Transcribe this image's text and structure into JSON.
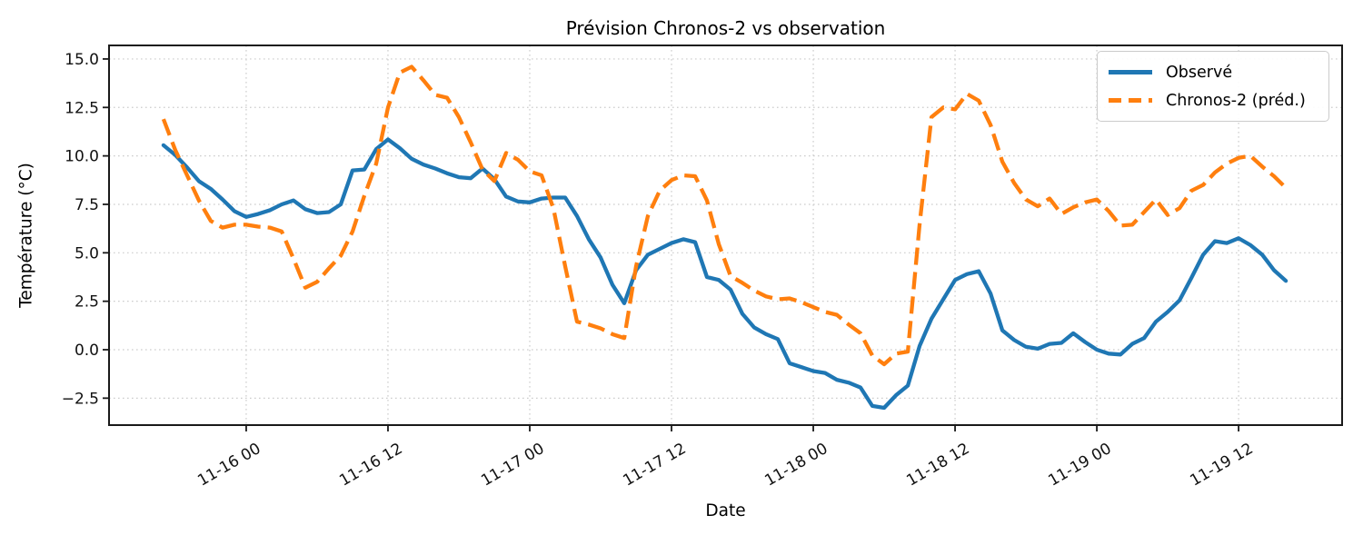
{
  "figure": {
    "title": "Prévision Chronos-2 vs observation",
    "xlabel": "Date",
    "ylabel": "Température (°C)"
  },
  "colors": {
    "background": "#ffffff",
    "grid": "#cccccc",
    "spine": "#1a1a1a",
    "text": "#000000",
    "observed": "#1f77b4",
    "forecast": "#ff7f0e"
  },
  "chart_data": {
    "type": "line",
    "title": "Prévision Chronos-2 vs observation",
    "xlabel": "Date",
    "ylabel": "Température (°C)",
    "grid": true,
    "legend_position": "upper right",
    "x_first_timestamp": "11-15 17:00",
    "x_last_timestamp": "11-19 16:00",
    "x_step_hours": 1,
    "x_start_hour": -7,
    "xlim_hours": [
      -11.61,
      92.76
    ],
    "ylim": [
      -3.89,
      15.7
    ],
    "x_ticks_hours": [
      0,
      12,
      24,
      36,
      48,
      60,
      72,
      84
    ],
    "x_tick_labels": [
      "11-16 00",
      "11-16 12",
      "11-17 00",
      "11-17 12",
      "11-18 00",
      "11-18 12",
      "11-19 00",
      "11-19 12"
    ],
    "y_ticks": [
      15.0,
      12.5,
      10.0,
      7.5,
      5.0,
      2.5,
      0.0,
      -2.5
    ],
    "y_tick_labels": [
      "15.0",
      "12.5",
      "10.0",
      "7.5",
      "5.0",
      "2.5",
      "0.0",
      "−2.5"
    ],
    "series": [
      {
        "name": "Observé",
        "color": "#1f77b4",
        "line_style": "solid",
        "line_width": 4.3,
        "values": [
          10.55,
          10.05,
          9.4,
          8.7,
          8.3,
          7.75,
          7.15,
          6.85,
          7.0,
          7.2,
          7.5,
          7.7,
          7.25,
          7.05,
          7.1,
          7.5,
          9.25,
          9.3,
          10.35,
          10.85,
          10.4,
          9.85,
          9.55,
          9.35,
          9.1,
          8.9,
          8.85,
          9.35,
          8.8,
          7.9,
          7.65,
          7.6,
          7.8,
          7.85,
          7.85,
          6.9,
          5.7,
          4.75,
          3.35,
          2.4,
          4.1,
          4.9,
          5.2,
          5.5,
          5.7,
          5.55,
          3.75,
          3.6,
          3.1,
          1.85,
          1.15,
          0.8,
          0.55,
          -0.7,
          -0.9,
          -1.1,
          -1.2,
          -1.55,
          -1.7,
          -1.95,
          -2.9,
          -3.0,
          -2.35,
          -1.85,
          0.2,
          1.6,
          2.6,
          3.6,
          3.9,
          4.05,
          2.9,
          1.0,
          0.5,
          0.15,
          0.05,
          0.3,
          0.35,
          0.85,
          0.4,
          0.0,
          -0.2,
          -0.25,
          0.3,
          0.6,
          1.45,
          1.95,
          2.55,
          3.7,
          4.9,
          5.6,
          5.5,
          5.75,
          5.4,
          4.9,
          4.1,
          3.55
        ]
      },
      {
        "name": "Chronos-2 (préd.)",
        "color": "#ff7f0e",
        "line_style": "dashed",
        "line_width": 4.3,
        "values": [
          11.9,
          10.3,
          9.0,
          7.7,
          6.65,
          6.3,
          6.45,
          6.45,
          6.35,
          6.3,
          6.1,
          4.7,
          3.2,
          3.5,
          4.2,
          4.85,
          6.1,
          7.95,
          9.6,
          12.5,
          14.3,
          14.6,
          13.9,
          13.15,
          13.0,
          12.0,
          10.7,
          9.3,
          8.7,
          10.15,
          9.8,
          9.2,
          9.0,
          7.3,
          4.3,
          1.45,
          1.3,
          1.1,
          0.8,
          0.6,
          4.3,
          6.9,
          8.2,
          8.75,
          9.0,
          8.95,
          7.7,
          5.45,
          3.8,
          3.45,
          3.05,
          2.75,
          2.6,
          2.65,
          2.45,
          2.2,
          1.95,
          1.8,
          1.3,
          0.85,
          -0.3,
          -0.75,
          -0.2,
          -0.1,
          6.5,
          12.0,
          12.5,
          12.4,
          13.2,
          12.85,
          11.6,
          9.7,
          8.6,
          7.75,
          7.4,
          7.8,
          7.0,
          7.35,
          7.6,
          7.75,
          7.15,
          6.4,
          6.45,
          7.1,
          7.75,
          6.95,
          7.3,
          8.2,
          8.5,
          9.15,
          9.6,
          9.9,
          10.0,
          9.45,
          8.95,
          8.35
        ]
      }
    ]
  }
}
